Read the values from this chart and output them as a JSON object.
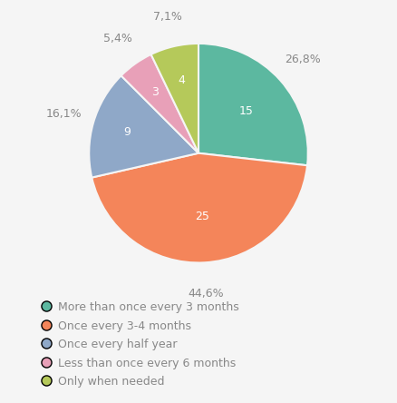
{
  "slices": [
    {
      "label": "More than once every 3 months",
      "value": 15,
      "pct": "26,8%",
      "color": "#5cb8a0",
      "n": "15"
    },
    {
      "label": "Once every 3-4 months",
      "value": 25,
      "pct": "44,6%",
      "color": "#f4855a",
      "n": "25"
    },
    {
      "label": "Once every half year",
      "value": 9,
      "pct": "16,1%",
      "color": "#8fa8c8",
      "n": "9"
    },
    {
      "label": "Less than once every 6 months",
      "value": 3,
      "pct": "5,4%",
      "color": "#e8a0b8",
      "n": "3"
    },
    {
      "label": "Only when needed",
      "value": 4,
      "pct": "7,1%",
      "color": "#b5c95a",
      "n": "4"
    }
  ],
  "background_color": "#f5f5f5",
  "text_color": "#888888",
  "label_pct_color": "#888888",
  "inner_label_color": "#ffffff",
  "font_size_pct": 9,
  "font_size_n": 9,
  "font_size_legend": 9
}
